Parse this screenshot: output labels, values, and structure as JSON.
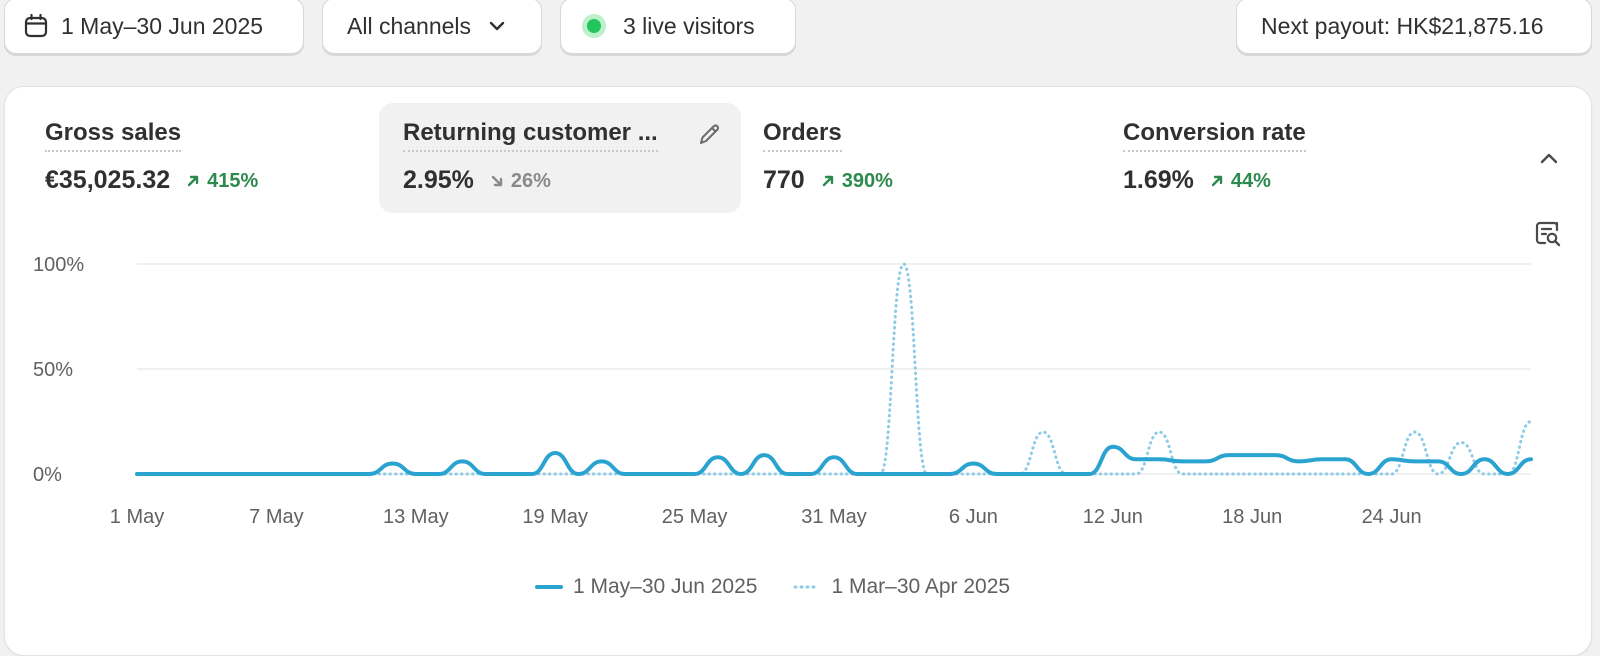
{
  "topbar": {
    "date_range": "1 May–30 Jun 2025",
    "channel": "All channels",
    "visitors": "3 live visitors",
    "payout": "Next payout: HK$21,875.16"
  },
  "metrics": [
    {
      "label": "Gross sales",
      "value": "€35,025.32",
      "delta": "415%",
      "direction": "up",
      "selected": false
    },
    {
      "label": "Returning customer ...",
      "value": "2.95%",
      "delta": "26%",
      "direction": "down",
      "selected": true
    },
    {
      "label": "Orders",
      "value": "770",
      "delta": "390%",
      "direction": "up",
      "selected": false
    },
    {
      "label": "Conversion rate",
      "value": "1.69%",
      "delta": "44%",
      "direction": "up",
      "selected": false
    }
  ],
  "icons": {
    "calendar": "calendar-icon",
    "chevron": "chevron-down-icon",
    "edit": "pencil-icon",
    "collapse": "chevron-up-icon",
    "explore": "report-search-icon"
  },
  "colors": {
    "current_series": "#2aa3d1",
    "previous_series": "#8ecbe6",
    "delta_up": "#2d8a4e",
    "delta_down": "#8a8a8a",
    "live": "#22c55e"
  },
  "legend": {
    "current": "1 May–30 Jun 2025",
    "previous": "1 Mar–30 Apr 2025"
  },
  "chart_data": {
    "type": "line",
    "ylabel": "",
    "xlabel": "",
    "ylim": [
      0,
      100
    ],
    "yticks": [
      "0%",
      "50%",
      "100%"
    ],
    "ytick_values": [
      0,
      50,
      100
    ],
    "x_tick_labels": [
      "1 May",
      "7 May",
      "13 May",
      "19 May",
      "25 May",
      "31 May",
      "6 Jun",
      "12 Jun",
      "18 Jun",
      "24 Jun"
    ],
    "x_tick_days": [
      0,
      6,
      12,
      18,
      24,
      30,
      36,
      42,
      48,
      54
    ],
    "grid": true,
    "legend_position": "bottom",
    "series": [
      {
        "name": "1 May–30 Jun 2025",
        "style": "solid",
        "days": [
          0,
          1,
          2,
          3,
          4,
          5,
          6,
          7,
          8,
          9,
          10,
          11,
          12,
          13,
          14,
          15,
          16,
          17,
          18,
          19,
          20,
          21,
          22,
          23,
          24,
          25,
          26,
          27,
          28,
          29,
          30,
          31,
          32,
          33,
          34,
          35,
          36,
          37,
          38,
          39,
          40,
          41,
          42,
          43,
          44,
          45,
          46,
          47,
          48,
          49,
          50,
          51,
          52,
          53,
          54,
          55,
          56,
          57,
          58,
          59,
          60
        ],
        "values": [
          0,
          0,
          0,
          0,
          0,
          0,
          0,
          0,
          0,
          0,
          0,
          5,
          0,
          0,
          6,
          0,
          0,
          0,
          10,
          0,
          6,
          0,
          0,
          0,
          0,
          8,
          0,
          9,
          0,
          0,
          8,
          0,
          0,
          0,
          0,
          0,
          5,
          0,
          0,
          0,
          0,
          0,
          13,
          7,
          7,
          6,
          6,
          9,
          9,
          9,
          6,
          7,
          7,
          0,
          7,
          6,
          6,
          0,
          7,
          0,
          7
        ]
      },
      {
        "name": "1 Mar–30 Apr 2025",
        "style": "dotted",
        "days": [
          0,
          1,
          2,
          3,
          4,
          5,
          6,
          7,
          8,
          9,
          10,
          11,
          12,
          13,
          14,
          15,
          16,
          17,
          18,
          19,
          20,
          21,
          22,
          23,
          24,
          25,
          26,
          27,
          28,
          29,
          30,
          31,
          32,
          33,
          34,
          35,
          36,
          37,
          38,
          39,
          40,
          41,
          42,
          43,
          44,
          45,
          46,
          47,
          48,
          49,
          50,
          51,
          52,
          53,
          54,
          55,
          56,
          57,
          58,
          59,
          60
        ],
        "values": [
          0,
          0,
          0,
          0,
          0,
          0,
          0,
          0,
          0,
          0,
          0,
          0,
          0,
          0,
          0,
          0,
          0,
          0,
          0,
          0,
          0,
          0,
          0,
          0,
          0,
          0,
          0,
          0,
          0,
          0,
          0,
          0,
          0,
          100,
          0,
          0,
          0,
          0,
          0,
          20,
          0,
          0,
          0,
          0,
          20,
          0,
          0,
          0,
          0,
          0,
          0,
          0,
          0,
          0,
          0,
          20,
          0,
          15,
          0,
          0,
          25
        ]
      }
    ]
  }
}
